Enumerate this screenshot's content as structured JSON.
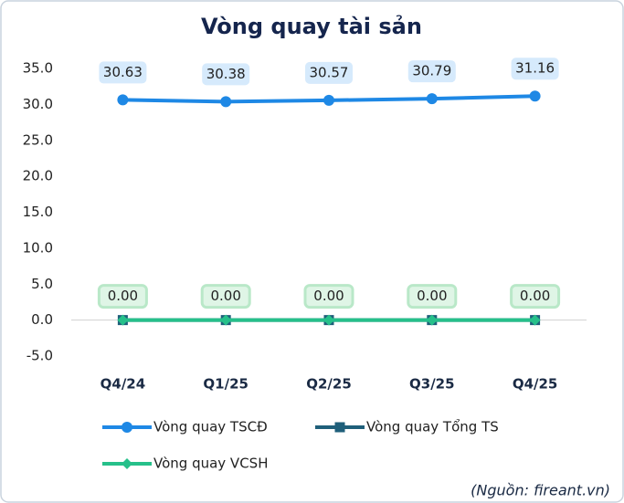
{
  "chart_data": {
    "type": "line",
    "title": "Vòng quay tài sản",
    "categories": [
      "Q4/24",
      "Q1/25",
      "Q2/25",
      "Q3/25",
      "Q4/25"
    ],
    "series": [
      {
        "name": "Vòng quay TSCĐ",
        "color": "#1e88e5",
        "marker": "circle",
        "values": [
          30.63,
          30.38,
          30.57,
          30.79,
          31.16
        ]
      },
      {
        "name": "Vòng quay Tổng TS",
        "color": "#1f5f7a",
        "marker": "square",
        "values": [
          0,
          0,
          0,
          0,
          0
        ]
      },
      {
        "name": "Vòng quay VCSH",
        "color": "#26c08a",
        "marker": "diamond",
        "values": [
          0,
          0,
          0,
          0,
          0
        ],
        "value_labels": [
          "0.00",
          "0.00",
          "0.00",
          "0.00",
          "0.00"
        ]
      }
    ],
    "ylim": [
      -5,
      35
    ],
    "yticks": [
      {
        "value": -5,
        "label": "-5.0"
      },
      {
        "value": 0,
        "label": "0.0"
      },
      {
        "value": 5,
        "label": "5.0"
      },
      {
        "value": 10,
        "label": "10.0"
      },
      {
        "value": 15,
        "label": "15.0"
      },
      {
        "value": 20,
        "label": "20.0"
      },
      {
        "value": 25,
        "label": "25.0"
      },
      {
        "value": 30,
        "label": "30.0"
      },
      {
        "value": 35,
        "label": "35.0"
      }
    ],
    "source": "(Nguồn: fireant.vn)"
  }
}
